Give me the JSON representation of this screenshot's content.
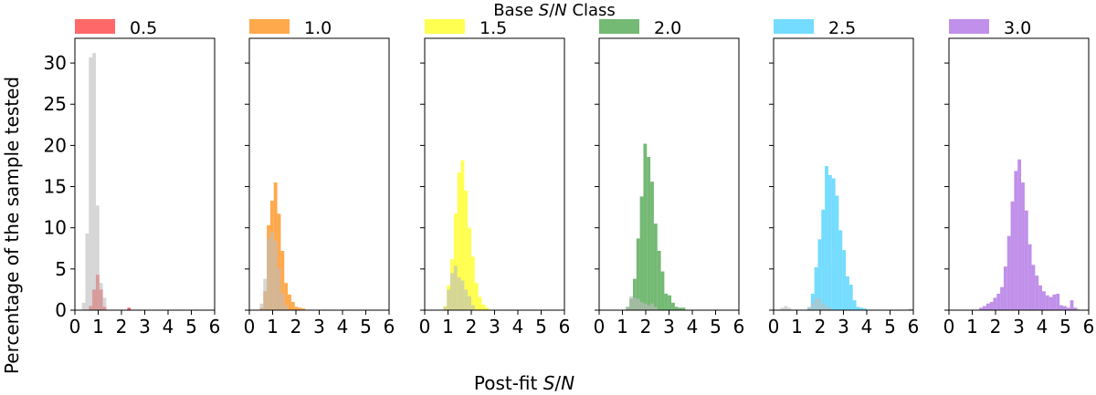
{
  "figure": {
    "legend_title": "Base S/N Class",
    "legend_title_parts": [
      "Base ",
      "S",
      "/",
      "N",
      " Class"
    ],
    "ylabel": "Percentage of the sample tested",
    "xlabel": "Post-fit S/N",
    "xlabel_parts": [
      "Post-fit ",
      "S",
      "/",
      "N"
    ],
    "colors": {
      "reference": "#bdbdbd",
      "reference_overlap_note": "grey histogram drawn over each colored class at alpha"
    }
  },
  "chart_data": [
    {
      "type": "bar",
      "panel": 1,
      "legend_label": "0.5",
      "color": "#ff4d4d",
      "xlim": [
        0,
        6
      ],
      "ylim": [
        0,
        33
      ],
      "xticks": [
        "0",
        "1",
        "2",
        "3",
        "4",
        "5",
        "6"
      ],
      "yticks": [
        "0",
        "5",
        "10",
        "15",
        "20",
        "25",
        "30"
      ],
      "bin_width": 0.15,
      "series": [
        {
          "name": "0.5",
          "bins_start": [
            0.6,
            0.75,
            0.9,
            1.05,
            1.2,
            2.25
          ],
          "values": [
            0.5,
            2.5,
            4.3,
            2.5,
            0.4,
            0.3
          ]
        },
        {
          "name": "reference",
          "bins_start": [
            0.3,
            0.45,
            0.6,
            0.75,
            0.9,
            1.05,
            1.2
          ],
          "values": [
            0.9,
            9.3,
            30.7,
            31.2,
            12.7,
            3.3,
            1.5
          ]
        }
      ]
    },
    {
      "type": "bar",
      "panel": 2,
      "legend_label": "1.0",
      "color": "#ff9a2e",
      "xlim": [
        0,
        6
      ],
      "ylim": [
        0,
        33
      ],
      "xticks": [
        "0",
        "1",
        "2",
        "3",
        "4",
        "5",
        "6"
      ],
      "yticks": [],
      "bin_width": 0.15,
      "series": [
        {
          "name": "1.0",
          "bins_start": [
            0.45,
            0.6,
            0.75,
            0.9,
            1.05,
            1.2,
            1.35,
            1.5,
            1.65,
            1.8,
            1.95,
            2.1,
            2.25
          ],
          "values": [
            0.3,
            2.3,
            10.3,
            13.3,
            15.5,
            11.7,
            7.2,
            3.3,
            1.9,
            1.0,
            0.4,
            0.3,
            0.2
          ]
        },
        {
          "name": "reference",
          "bins_start": [
            0.45,
            0.6,
            0.75,
            0.9,
            1.05,
            1.2,
            1.35,
            1.5
          ],
          "values": [
            0.8,
            3.8,
            8.7,
            9.5,
            8.4,
            5.1,
            2.0,
            0.6
          ]
        }
      ]
    },
    {
      "type": "bar",
      "panel": 3,
      "legend_label": "1.5",
      "color": "#ffff33",
      "xlim": [
        0,
        6
      ],
      "ylim": [
        0,
        33
      ],
      "xticks": [
        "0",
        "1",
        "2",
        "3",
        "4",
        "5",
        "6"
      ],
      "yticks": [],
      "bin_width": 0.15,
      "series": [
        {
          "name": "1.5",
          "bins_start": [
            0.8,
            0.95,
            1.1,
            1.25,
            1.4,
            1.55,
            1.7,
            1.85,
            2.0,
            2.15,
            2.3,
            2.45,
            2.6
          ],
          "values": [
            0.5,
            3.0,
            6.2,
            11.7,
            16.7,
            18.2,
            14.5,
            10.0,
            6.5,
            3.3,
            1.6,
            0.7,
            0.3
          ]
        },
        {
          "name": "reference",
          "bins_start": [
            0.8,
            0.95,
            1.1,
            1.25,
            1.4,
            1.55,
            1.7,
            1.85,
            2.0
          ],
          "values": [
            0.4,
            2.5,
            4.5,
            5.4,
            4.0,
            3.6,
            2.5,
            1.7,
            0.6
          ]
        }
      ]
    },
    {
      "type": "bar",
      "panel": 4,
      "legend_label": "2.0",
      "color": "#5cad5c",
      "xlim": [
        0,
        6
      ],
      "ylim": [
        0,
        33
      ],
      "xticks": [
        "0",
        "1",
        "2",
        "3",
        "4",
        "5",
        "6"
      ],
      "yticks": [],
      "bin_width": 0.15,
      "series": [
        {
          "name": "2.0",
          "bins_start": [
            1.15,
            1.3,
            1.45,
            1.6,
            1.75,
            1.9,
            2.05,
            2.2,
            2.35,
            2.5,
            2.65,
            2.8,
            2.95,
            3.1,
            3.25,
            3.4,
            3.55
          ],
          "values": [
            0.4,
            1.4,
            3.8,
            8.7,
            13.8,
            20.2,
            18.6,
            15.6,
            10.5,
            7.2,
            4.7,
            2.0,
            1.8,
            0.9,
            0.4,
            0.3,
            0.3
          ]
        },
        {
          "name": "reference",
          "bins_start": [
            1.15,
            1.3,
            1.45,
            1.6,
            1.75,
            1.9,
            2.05,
            2.2,
            2.35
          ],
          "values": [
            0.4,
            1.7,
            1.5,
            1.4,
            1.0,
            0.8,
            0.6,
            0.8,
            0.4
          ]
        }
      ]
    },
    {
      "type": "bar",
      "panel": 5,
      "legend_label": "2.5",
      "color": "#5cd6ff",
      "xlim": [
        0,
        6
      ],
      "ylim": [
        0,
        33
      ],
      "xticks": [
        "0",
        "1",
        "2",
        "3",
        "4",
        "5",
        "6"
      ],
      "yticks": [],
      "bin_width": 0.15,
      "series": [
        {
          "name": "2.5",
          "bins_start": [
            1.45,
            1.6,
            1.75,
            1.9,
            2.05,
            2.2,
            2.35,
            2.5,
            2.65,
            2.8,
            2.95,
            3.1,
            3.25,
            3.4,
            3.55,
            3.7,
            3.85
          ],
          "values": [
            0.3,
            2.0,
            5.2,
            8.6,
            12.2,
            17.5,
            16.4,
            16.0,
            13.9,
            9.7,
            7.3,
            4.1,
            3.1,
            1.2,
            0.4,
            0.3,
            0.2
          ]
        },
        {
          "name": "reference",
          "bins_start": [
            0.3,
            0.45,
            0.6,
            1.45,
            1.6,
            1.75,
            1.9,
            2.05,
            2.2,
            2.35,
            5.8
          ],
          "values": [
            0.3,
            0.5,
            0.3,
            0.4,
            0.8,
            1.5,
            1.4,
            0.8,
            0.5,
            0.3,
            0.2
          ]
        }
      ]
    },
    {
      "type": "bar",
      "panel": 6,
      "legend_label": "3.0",
      "color": "#b57ce6",
      "xlim": [
        0,
        6
      ],
      "ylim": [
        0,
        33
      ],
      "xticks": [
        "0",
        "1",
        "2",
        "3",
        "4",
        "5",
        "6"
      ],
      "yticks": [],
      "bin_width": 0.15,
      "series": [
        {
          "name": "3.0",
          "bins_start": [
            1.3,
            1.45,
            1.6,
            1.75,
            1.9,
            2.05,
            2.2,
            2.35,
            2.5,
            2.65,
            2.8,
            2.95,
            3.1,
            3.25,
            3.4,
            3.55,
            3.7,
            3.85,
            4.0,
            4.15,
            4.3,
            4.45,
            4.6,
            4.75,
            4.9,
            5.05,
            5.2,
            5.35
          ],
          "values": [
            0.3,
            0.5,
            0.8,
            1.0,
            1.5,
            2.0,
            2.8,
            5.3,
            9.0,
            13.2,
            16.9,
            18.3,
            15.5,
            12.1,
            8.0,
            5.5,
            4.2,
            3.0,
            2.3,
            1.8,
            1.6,
            1.9,
            2.0,
            0.6,
            0.5,
            0.3,
            1.2,
            0.3
          ]
        },
        {
          "name": "reference",
          "bins_start": [
            5.45
          ],
          "values": [
            0.2
          ]
        }
      ]
    }
  ]
}
